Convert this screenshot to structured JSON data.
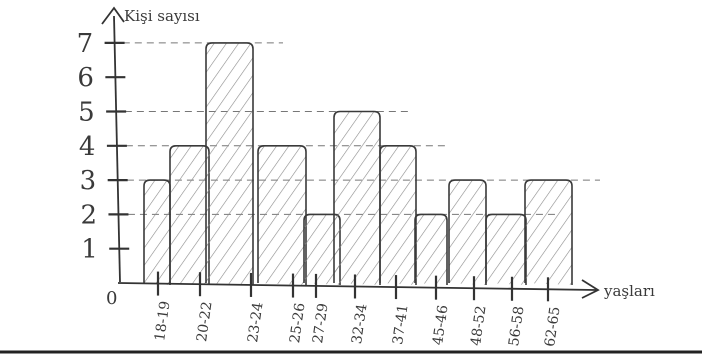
{
  "chart_data": {
    "type": "bar",
    "title": "",
    "ylabel": "Kişi sayısı",
    "xlabel": "yaşları",
    "categories": [
      "18-19",
      "20-22",
      "23-24",
      "25-26",
      "27-29",
      "32-34",
      "37-41",
      "45-46",
      "48-52",
      "56-58",
      "62-65"
    ],
    "values": [
      3,
      4,
      7,
      4,
      2,
      5,
      4,
      2,
      3,
      2,
      3
    ],
    "ylim": [
      0,
      7
    ],
    "yticks": [
      "0",
      "1",
      "2",
      "3",
      "4",
      "5",
      "6",
      "7"
    ],
    "grid": "dashed horizontal at bar tops",
    "legend": "none",
    "style": "hand-drawn hatched bars on paper",
    "colors": {
      "ink": "#3a3a3a",
      "paper": "#ffffff"
    }
  }
}
